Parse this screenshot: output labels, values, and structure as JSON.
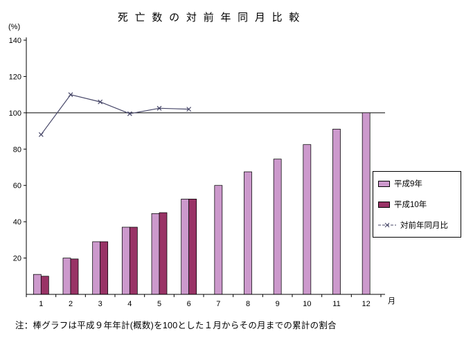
{
  "title": "死亡数の対前年同月比較",
  "y_axis_unit": "(%)",
  "x_axis_unit": "月",
  "note": "注：棒グラフは平成９年年計(概数)を100とした１月からその月までの累計の割合",
  "colors": {
    "heisei9_bar": "#CC99CC",
    "heisei10_bar": "#993366",
    "ratio_line": "#444466",
    "reference_line": "#000000",
    "axis": "#000000"
  },
  "chart_data": {
    "type": "bar",
    "title": "死亡数の対前年同月比較",
    "xlabel": "月",
    "ylabel": "(%)",
    "categories": [
      1,
      2,
      3,
      4,
      5,
      6,
      7,
      8,
      9,
      10,
      11,
      12
    ],
    "series": [
      {
        "name": "平成9年",
        "type": "bar",
        "values": [
          11,
          20,
          29,
          37,
          44.5,
          52.5,
          60,
          67.5,
          74.5,
          82.5,
          91,
          100
        ]
      },
      {
        "name": "平成10年",
        "type": "bar",
        "values": [
          10,
          19.5,
          29,
          37,
          45,
          52.5
        ]
      },
      {
        "name": "対前年同月比",
        "type": "line",
        "marker": "x",
        "values": [
          88,
          110,
          106,
          99.5,
          102.5,
          102
        ]
      }
    ],
    "ylim": [
      0,
      140
    ],
    "ytick_step": 20,
    "ref_line": 100,
    "grid": false,
    "legend_position": "right"
  }
}
